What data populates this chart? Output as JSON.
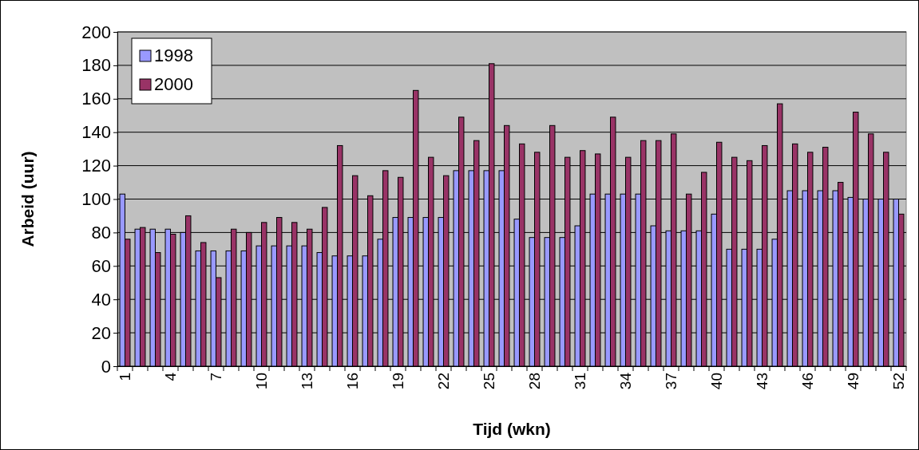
{
  "chart_data": {
    "type": "bar",
    "xlabel": "Tijd (wkn)",
    "ylabel": "Arbeid (uur)",
    "categories": [
      "1",
      null,
      null,
      "4",
      null,
      null,
      "7",
      null,
      null,
      "10",
      null,
      null,
      "13",
      null,
      null,
      "16",
      null,
      null,
      "19",
      null,
      null,
      "22",
      null,
      null,
      "25",
      null,
      null,
      "28",
      null,
      null,
      "31",
      null,
      null,
      "34",
      null,
      null,
      "37",
      null,
      null,
      "40",
      null,
      null,
      "43",
      null,
      null,
      "46",
      null,
      null,
      "49",
      null,
      null,
      "52"
    ],
    "series": [
      {
        "name": "1998",
        "color": "#9999ff",
        "values": [
          103,
          82,
          82,
          82,
          80,
          69,
          69,
          69,
          69,
          72,
          72,
          72,
          72,
          68,
          66,
          66,
          66,
          76,
          89,
          89,
          89,
          89,
          117,
          117,
          117,
          117,
          88,
          77,
          77,
          77,
          84,
          103,
          103,
          103,
          103,
          84,
          81,
          81,
          81,
          91,
          70,
          70,
          70,
          76,
          105,
          105,
          105,
          105,
          101,
          100,
          100,
          100
        ]
      },
      {
        "name": "2000",
        "color": "#993366",
        "values": [
          76,
          83,
          68,
          79,
          90,
          74,
          53,
          82,
          80,
          86,
          89,
          86,
          82,
          95,
          132,
          114,
          102,
          117,
          113,
          165,
          125,
          114,
          149,
          135,
          181,
          144,
          133,
          128,
          144,
          125,
          129,
          127,
          149,
          125,
          135,
          135,
          139,
          103,
          116,
          134,
          125,
          123,
          132,
          157,
          133,
          128,
          131,
          110,
          152,
          139,
          128,
          91
        ]
      }
    ],
    "ylim": [
      0,
      200
    ],
    "yticks": [
      0,
      20,
      40,
      60,
      80,
      100,
      120,
      140,
      160,
      180,
      200
    ],
    "grid": "y",
    "legend": "top left"
  }
}
